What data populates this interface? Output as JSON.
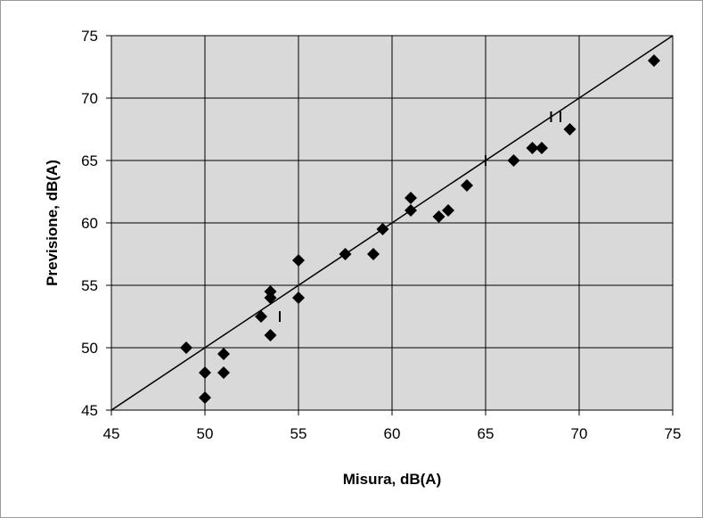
{
  "chart_data": {
    "type": "scatter",
    "title": "",
    "xlabel": "Misura, dB(A)",
    "ylabel": "Previsione, dB(A)",
    "xlim": [
      45,
      75
    ],
    "ylim": [
      45,
      75
    ],
    "xticks": [
      45,
      50,
      55,
      60,
      65,
      70,
      75
    ],
    "yticks": [
      45,
      50,
      55,
      60,
      65,
      70,
      75
    ],
    "grid": true,
    "legend": "none",
    "plot_background": "#d9d9d9",
    "grid_color": "#000000",
    "marker": "diamond",
    "marker_color": "#000000",
    "series": [
      {
        "values": [
          {
            "x": 49.0,
            "y": 50.0
          },
          {
            "x": 50.0,
            "y": 48.0
          },
          {
            "x": 50.0,
            "y": 46.0
          },
          {
            "x": 51.0,
            "y": 49.5
          },
          {
            "x": 51.0,
            "y": 48.0
          },
          {
            "x": 53.0,
            "y": 52.5
          },
          {
            "x": 53.5,
            "y": 54.5
          },
          {
            "x": 53.5,
            "y": 54.0
          },
          {
            "x": 53.5,
            "y": 51.0
          },
          {
            "x": 55.0,
            "y": 57.0
          },
          {
            "x": 55.0,
            "y": 54.0
          },
          {
            "x": 57.5,
            "y": 57.5
          },
          {
            "x": 59.0,
            "y": 57.5
          },
          {
            "x": 59.5,
            "y": 59.5
          },
          {
            "x": 61.0,
            "y": 62.0
          },
          {
            "x": 61.0,
            "y": 61.0
          },
          {
            "x": 62.5,
            "y": 60.5
          },
          {
            "x": 63.0,
            "y": 61.0
          },
          {
            "x": 64.0,
            "y": 63.0
          },
          {
            "x": 66.5,
            "y": 65.0
          },
          {
            "x": 67.5,
            "y": 66.0
          },
          {
            "x": 68.0,
            "y": 66.0
          },
          {
            "x": 69.5,
            "y": 67.5
          },
          {
            "x": 74.0,
            "y": 73.0
          }
        ]
      }
    ],
    "reference_line": {
      "from": [
        45,
        45
      ],
      "to": [
        75,
        75
      ],
      "color": "#000000"
    },
    "tick_marks": [
      {
        "x": 54.0,
        "y": 52.5
      },
      {
        "x": 65.0,
        "y": 65.0
      },
      {
        "x": 68.5,
        "y": 68.5
      },
      {
        "x": 69.0,
        "y": 68.5
      }
    ]
  }
}
